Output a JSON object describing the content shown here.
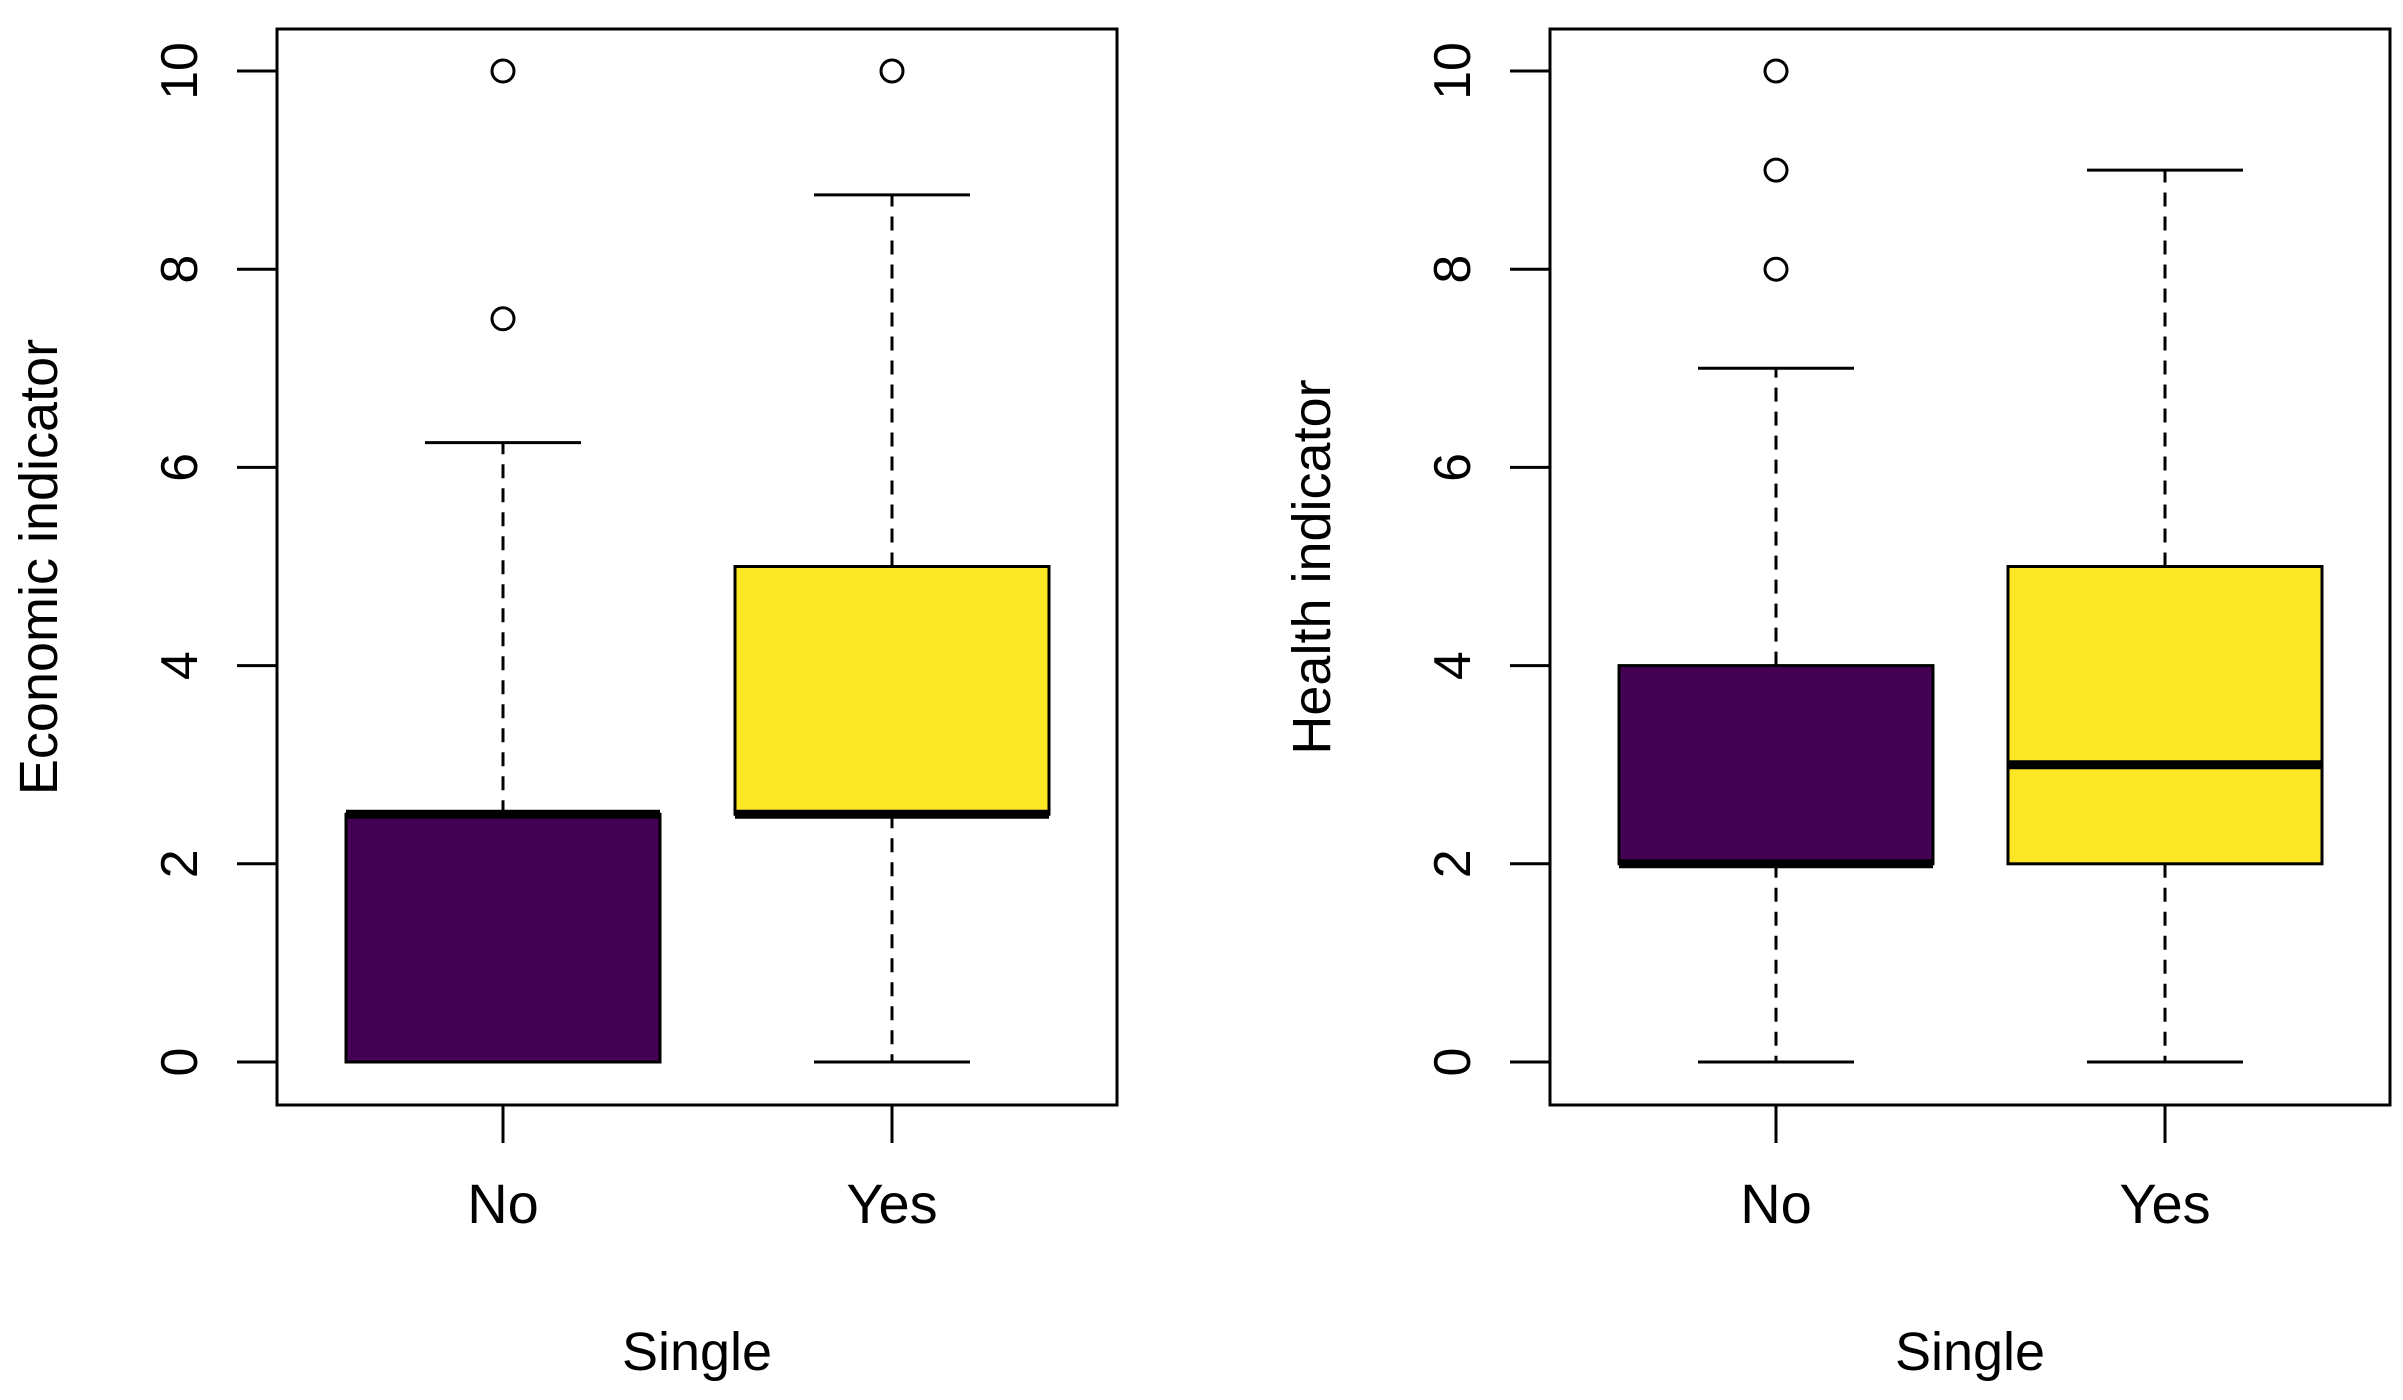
{
  "chart_data": [
    {
      "type": "box",
      "title": "",
      "xlabel": "Single",
      "ylabel": "Economic indicator",
      "ylim": [
        0,
        10
      ],
      "yticks": [
        "0",
        "2",
        "4",
        "6",
        "8",
        "10"
      ],
      "grid": false,
      "categories": [
        "No",
        "Yes"
      ],
      "boxes": [
        {
          "category": "No",
          "color": "#440154",
          "whisker_low": 0,
          "q1": 0,
          "median": 2.5,
          "q3": 2.5,
          "whisker_high": 6.25,
          "outliers": [
            7.5,
            10
          ]
        },
        {
          "category": "Yes",
          "color": "#FDE725",
          "whisker_low": 0,
          "q1": 2.5,
          "median": 2.5,
          "q3": 5,
          "whisker_high": 8.75,
          "outliers": [
            10
          ]
        }
      ]
    },
    {
      "type": "box",
      "title": "",
      "xlabel": "Single",
      "ylabel": "Health indicator",
      "ylim": [
        0,
        10
      ],
      "yticks": [
        "0",
        "2",
        "4",
        "6",
        "8",
        "10"
      ],
      "grid": false,
      "categories": [
        "No",
        "Yes"
      ],
      "boxes": [
        {
          "category": "No",
          "color": "#440154",
          "whisker_low": 0,
          "q1": 2,
          "median": 2,
          "q3": 4,
          "whisker_high": 7,
          "outliers": [
            8,
            9,
            10
          ]
        },
        {
          "category": "Yes",
          "color": "#FDE725",
          "whisker_low": 0,
          "q1": 2,
          "median": 3,
          "q3": 5,
          "whisker_high": 9,
          "outliers": []
        }
      ]
    }
  ]
}
